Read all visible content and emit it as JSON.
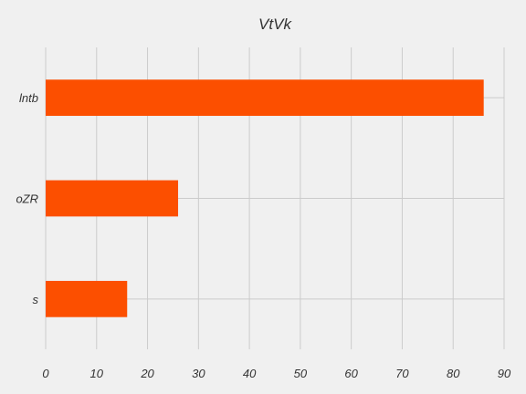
{
  "chart_data": {
    "type": "bar",
    "orientation": "horizontal",
    "title": "VtVk",
    "xlabel": "",
    "ylabel": "",
    "categories": [
      "lntb",
      "oZR",
      "s"
    ],
    "values": [
      86,
      26,
      16
    ],
    "xlim": [
      0,
      90
    ],
    "x_ticks": [
      0,
      10,
      20,
      30,
      40,
      50,
      60,
      70,
      80,
      90
    ],
    "grid": true,
    "legend": "none",
    "colors": {
      "bar": "#fc4f00",
      "background": "#f0f0f0",
      "grid": "#cbcbcb",
      "text": "#333333"
    }
  }
}
